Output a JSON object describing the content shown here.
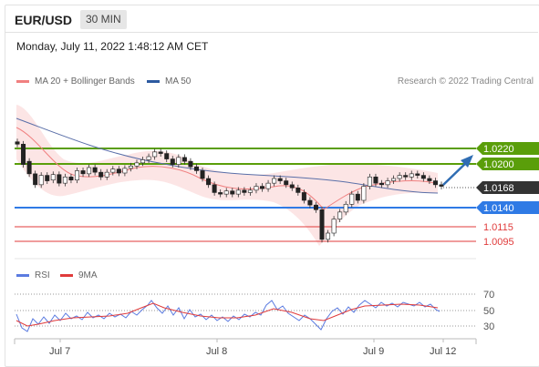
{
  "header": {
    "symbol": "EUR/USD",
    "timeframe": "30 MIN"
  },
  "datetime": "Monday, July 11, 2022 1:48:12 AM CET",
  "legend": {
    "ma20_label": "MA 20 + Bollinger Bands",
    "ma50_label": "MA 50",
    "ma20_color": "#f08080",
    "ma50_color": "#2c5aa0"
  },
  "copyright": "Research © 2022 Trading Central",
  "price_levels": [
    {
      "label": "1.0220",
      "kind": "target",
      "color": "#5a9e0a"
    },
    {
      "label": "1.0200",
      "kind": "target",
      "color": "#5a9e0a"
    },
    {
      "label": "1.0168",
      "kind": "current",
      "color": "#333333"
    },
    {
      "label": "1.0140",
      "kind": "pivot",
      "color": "#2f7ae5"
    },
    {
      "label": "1.0115",
      "kind": "support",
      "color": "#e03b3b"
    },
    {
      "label": "1.0095",
      "kind": "support",
      "color": "#e03b3b"
    }
  ],
  "rsi_legend": {
    "rsi_label": "RSI",
    "ma_label": "9MA",
    "rsi_color": "#5b7be0",
    "ma_color": "#e03b3b"
  },
  "rsi_levels": [
    "70",
    "50",
    "30"
  ],
  "x_axis_labels": [
    "Jul 7",
    "Jul 8",
    "Jul 9",
    "Jul 12"
  ],
  "chart_data": {
    "type": "candlestick",
    "ylim": [
      1.008,
      1.029
    ],
    "levels": [
      1.022,
      1.02,
      1.0168,
      1.014,
      1.0115,
      1.0095
    ],
    "candles": [
      [
        1.0225,
        1.0222
      ],
      [
        1.0222,
        1.0196
      ],
      [
        1.02,
        1.0184
      ],
      [
        1.0184,
        1.017
      ],
      [
        1.017,
        1.0182
      ],
      [
        1.0182,
        1.0175
      ],
      [
        1.0176,
        1.0183
      ],
      [
        1.0183,
        1.0172
      ],
      [
        1.0172,
        1.018
      ],
      [
        1.018,
        1.0176
      ],
      [
        1.0176,
        1.0188
      ],
      [
        1.0188,
        1.0184
      ],
      [
        1.0184,
        1.0192
      ],
      [
        1.0192,
        1.0186
      ],
      [
        1.0186,
        1.018
      ],
      [
        1.018,
        1.0186
      ],
      [
        1.0186,
        1.019
      ],
      [
        1.019,
        1.0185
      ],
      [
        1.0185,
        1.0191
      ],
      [
        1.0191,
        1.0194
      ],
      [
        1.0194,
        1.0198
      ],
      [
        1.0198,
        1.0202
      ],
      [
        1.0202,
        1.0206
      ],
      [
        1.0206,
        1.0212
      ],
      [
        1.0212,
        1.021
      ],
      [
        1.021,
        1.0203
      ],
      [
        1.0203,
        1.0196
      ],
      [
        1.0196,
        1.0205
      ],
      [
        1.0205,
        1.02
      ],
      [
        1.02,
        1.0193
      ],
      [
        1.0193,
        1.0188
      ],
      [
        1.0188,
        1.0178
      ],
      [
        1.0178,
        1.017
      ],
      [
        1.017,
        1.016
      ],
      [
        1.016,
        1.0158
      ],
      [
        1.0158,
        1.0162
      ],
      [
        1.0162,
        1.0158
      ],
      [
        1.0158,
        1.0163
      ],
      [
        1.0163,
        1.016
      ],
      [
        1.016,
        1.0163
      ],
      [
        1.0163,
        1.0168
      ],
      [
        1.0168,
        1.0165
      ],
      [
        1.0165,
        1.0172
      ],
      [
        1.0172,
        1.0178
      ],
      [
        1.0178,
        1.0175
      ],
      [
        1.0175,
        1.017
      ],
      [
        1.017,
        1.0166
      ],
      [
        1.0166,
        1.016
      ],
      [
        1.016,
        1.015
      ],
      [
        1.015,
        1.0144
      ],
      [
        1.0144,
        1.0138
      ],
      [
        1.0138,
        1.01
      ],
      [
        1.01,
        1.0108
      ],
      [
        1.0108,
        1.0126
      ],
      [
        1.0126,
        1.0135
      ],
      [
        1.0135,
        1.0145
      ],
      [
        1.0145,
        1.0158
      ],
      [
        1.0158,
        1.015
      ],
      [
        1.015,
        1.0168
      ],
      [
        1.0168,
        1.018
      ],
      [
        1.018,
        1.0172
      ],
      [
        1.0172,
        1.017
      ],
      [
        1.017,
        1.0175
      ],
      [
        1.0175,
        1.0178
      ],
      [
        1.0178,
        1.0182
      ],
      [
        1.0182,
        1.018
      ],
      [
        1.018,
        1.0184
      ],
      [
        1.0184,
        1.0182
      ],
      [
        1.0182,
        1.0178
      ],
      [
        1.0178,
        1.0175
      ],
      [
        1.0175,
        1.017
      ],
      [
        1.017,
        1.0168
      ]
    ]
  }
}
